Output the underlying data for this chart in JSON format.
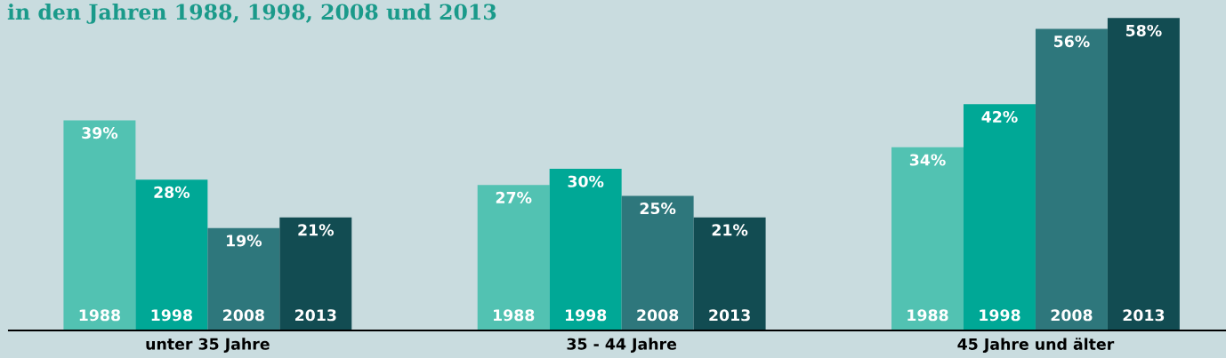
{
  "chart_data": {
    "type": "bar",
    "title": "in den Jahren 1988, 1998, 2008 und 2013",
    "categories": [
      "unter 35 Jahre",
      "35 - 44 Jahre",
      "45 Jahre und älter"
    ],
    "series": [
      {
        "name": "1988",
        "color": "#52c2b2",
        "values": [
          39,
          27,
          34
        ],
        "value_labels": [
          "39%",
          "27%",
          "34%"
        ]
      },
      {
        "name": "1998",
        "color": "#00a896",
        "values": [
          28,
          30,
          42
        ],
        "value_labels": [
          "28%",
          "30%",
          "42%"
        ]
      },
      {
        "name": "2008",
        "color": "#2e777c",
        "values": [
          19,
          25,
          56
        ],
        "value_labels": [
          "19%",
          "25%",
          "56%"
        ]
      },
      {
        "name": "2013",
        "color": "#124c52",
        "values": [
          21,
          21,
          58
        ],
        "value_labels": [
          "21%",
          "21%",
          "58%"
        ]
      }
    ],
    "legend": false,
    "grid": false
  }
}
